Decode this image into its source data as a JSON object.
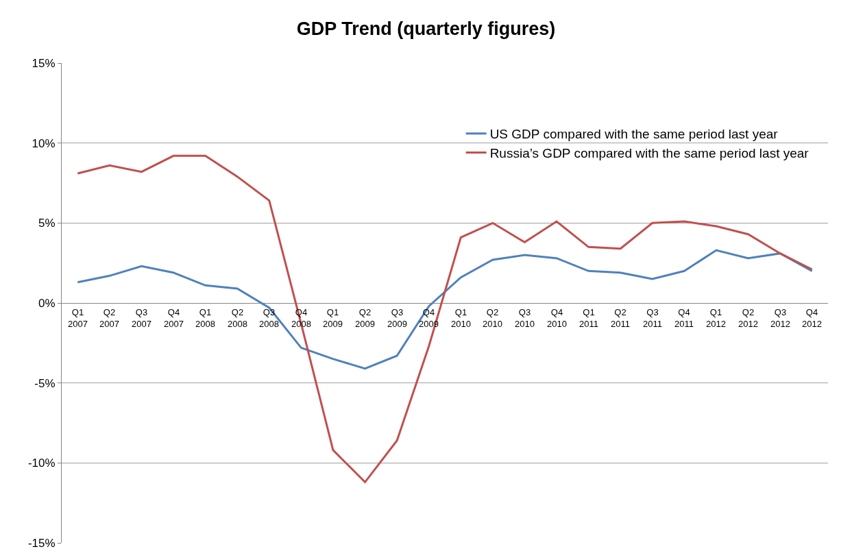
{
  "chart_data": {
    "type": "line",
    "title": "GDP Trend (quarterly figures)",
    "categories": [
      "Q1 2007",
      "Q2 2007",
      "Q3 2007",
      "Q4 2007",
      "Q1 2008",
      "Q2 2008",
      "Q3 2008",
      "Q4 2008",
      "Q1 2009",
      "Q2 2009",
      "Q3 2009",
      "Q4 2009",
      "Q1 2010",
      "Q2 2010",
      "Q3 2010",
      "Q4 2010",
      "Q1 2011",
      "Q2 2011",
      "Q3 2011",
      "Q4 2011",
      "Q1 2012",
      "Q2 2012",
      "Q3 2012",
      "Q4 2012"
    ],
    "series": [
      {
        "name": "US GDP compared with the same period last year",
        "color": "#4f81bd",
        "values": [
          1.3,
          1.7,
          2.3,
          1.9,
          1.1,
          0.9,
          -0.3,
          -2.8,
          -3.5,
          -4.1,
          -3.3,
          -0.2,
          1.6,
          2.7,
          3.0,
          2.8,
          2.0,
          1.9,
          1.5,
          2.0,
          3.3,
          2.8,
          3.1,
          2.0
        ]
      },
      {
        "name": "Russia’s GDP compared with the same period last year",
        "color": "#c0504d",
        "values": [
          8.1,
          8.6,
          8.2,
          9.2,
          9.2,
          7.9,
          6.4,
          -1.3,
          -9.2,
          -11.2,
          -8.6,
          -2.7,
          4.1,
          5.0,
          3.8,
          5.1,
          3.5,
          3.4,
          5.0,
          5.1,
          4.8,
          4.3,
          3.1,
          2.1
        ]
      }
    ],
    "ylim": [
      -15,
      15
    ],
    "yticks": [
      {
        "value": -15,
        "label": "-15%"
      },
      {
        "value": -10,
        "label": "-10%"
      },
      {
        "value": -5,
        "label": "-5%"
      },
      {
        "value": 0,
        "label": "0%"
      },
      {
        "value": 5,
        "label": "5%"
      },
      {
        "value": 10,
        "label": "10%"
      },
      {
        "value": 15,
        "label": "15%"
      }
    ],
    "grid": "y",
    "legend": "top right",
    "marker": "none",
    "line_style": "solid"
  }
}
